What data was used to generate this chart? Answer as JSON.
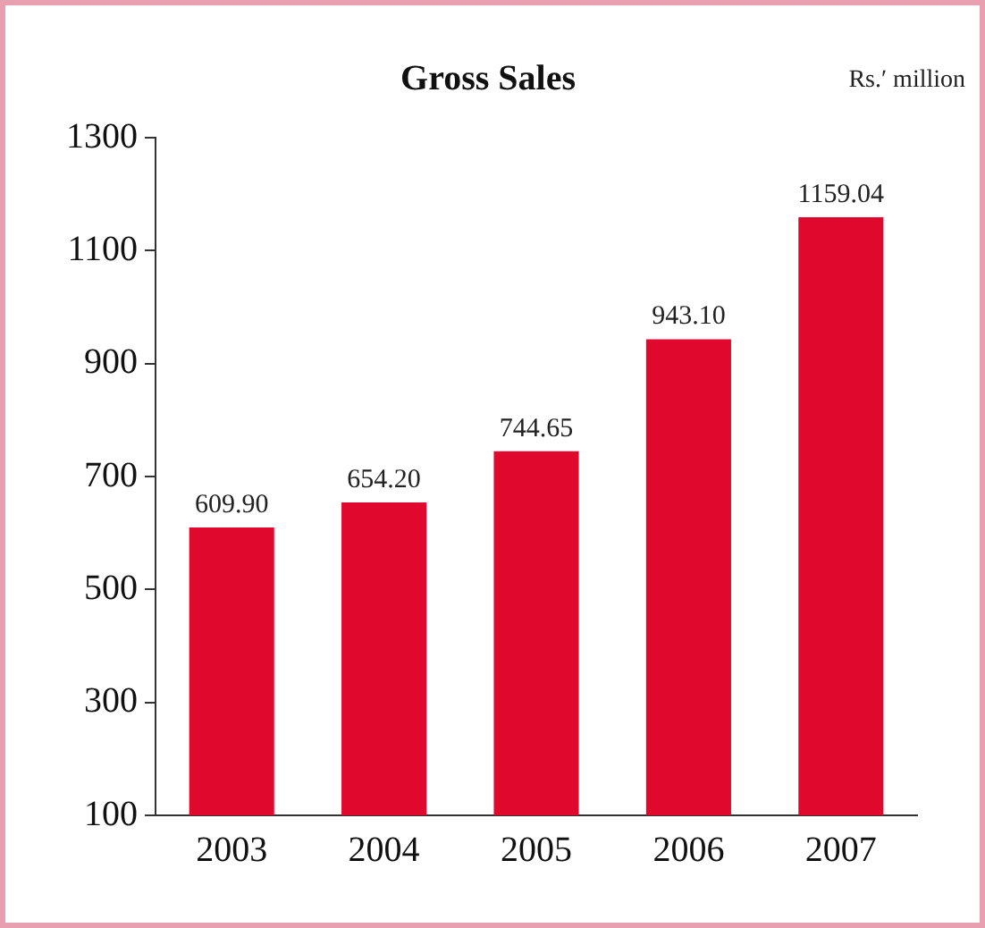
{
  "chart_data": {
    "type": "bar",
    "title": "Gross Sales",
    "annotations": [
      "Rs.′ million"
    ],
    "categories": [
      "2003",
      "2004",
      "2005",
      "2006",
      "2007"
    ],
    "values": [
      609.9,
      654.2,
      744.65,
      943.1,
      1159.04
    ],
    "value_labels": [
      "609.90",
      "654.20",
      "744.65",
      "943.10",
      "1159.04"
    ],
    "color": "#e0092d",
    "ylim": [
      100,
      1300
    ],
    "yticks": [
      100,
      300,
      500,
      700,
      900,
      1100,
      1300
    ],
    "grid": false,
    "legend": false
  }
}
